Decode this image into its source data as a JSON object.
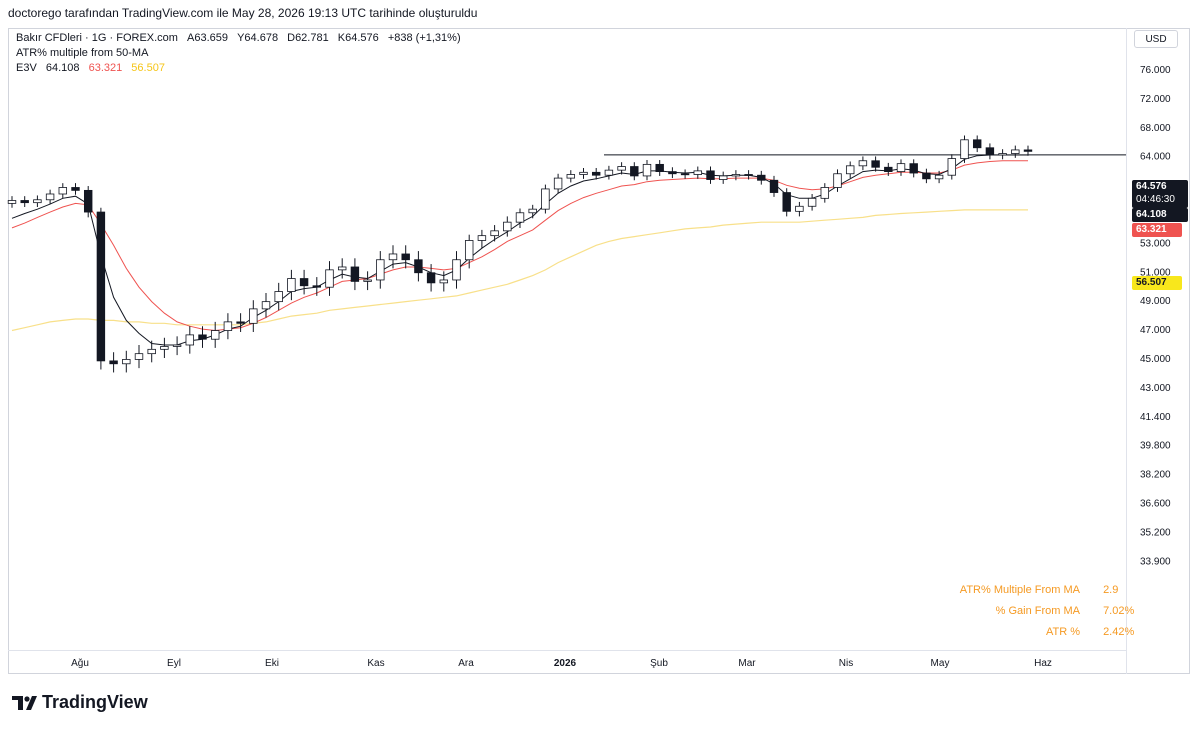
{
  "header": {
    "note": "doctorego tarafından TradingView.com ile May 28, 2026 19:13 UTC tarihinde oluşturuldu"
  },
  "legend": {
    "symbol_line": "Bakır CFDleri · 1G · FOREX.com",
    "ohlc": {
      "open": "A63.659",
      "high": "Y64.678",
      "low": "D62.781",
      "close": "K64.576",
      "change": "+838 (+1,31%)"
    },
    "indicator_name": "ATR% multiple from 50-MA",
    "ema_label": "E3V",
    "ema_values": {
      "black": "64.108",
      "red": "63.321",
      "yellow": "56.507"
    }
  },
  "currency_button": "USD",
  "badges": {
    "price": "64.576",
    "countdown": "04:46:30",
    "line_level": "64.108",
    "red_ma": "63.321",
    "yellow_ma": "56.507"
  },
  "stats": [
    {
      "label": "ATR% Multiple From MA",
      "value": "2.9"
    },
    {
      "label": "% Gain From MA",
      "value": "7.02%"
    },
    {
      "label": "ATR %",
      "value": "2.42%"
    }
  ],
  "brand": "TradingView",
  "colors": {
    "up_candle": "#ffffff",
    "down_candle": "#131722",
    "candle_outline": "#131722",
    "ema_fast": "#131722",
    "ema_mid": "#ef5350",
    "ma_slow": "#f8e08a",
    "stats_text": "#f59a23"
  },
  "chart_data": {
    "type": "candlestick",
    "y_ticks": [
      "76.000",
      "72.000",
      "68.000",
      "64.000",
      "60.000",
      "56.000",
      "53.000",
      "51.000",
      "49.000",
      "47.000",
      "45.000",
      "43.000",
      "41.400",
      "39.800",
      "38.200",
      "36.600",
      "35.200",
      "33.900"
    ],
    "x_ticks": [
      "Ağu",
      "Eyl",
      "Eki",
      "Kas",
      "Ara",
      "2026",
      "Şub",
      "Mar",
      "Nis",
      "May",
      "Haz"
    ],
    "horizontal_line": 64.108,
    "series_close": [
      57.8,
      57.5,
      57.9,
      58.7,
      59.6,
      59.2,
      56.2,
      44.8,
      44.6,
      44.9,
      45.3,
      45.6,
      45.8,
      45.9,
      46.6,
      46.3,
      46.9,
      47.5,
      47.4,
      48.4,
      48.9,
      49.6,
      50.5,
      50.0,
      49.9,
      51.1,
      51.3,
      50.3,
      50.4,
      51.8,
      52.2,
      51.8,
      50.9,
      50.2,
      50.4,
      51.8,
      53.2,
      53.7,
      54.2,
      55.1,
      56.1,
      56.6,
      59.4,
      60.9,
      61.4,
      61.7,
      61.3,
      62.0,
      62.5,
      61.2,
      62.8,
      61.8,
      61.5,
      61.4,
      61.9,
      60.7,
      61.2,
      61.4,
      61.3,
      60.6,
      58.9,
      56.3,
      57.0,
      58.1,
      59.6,
      61.5,
      62.6,
      63.3,
      62.4,
      61.8,
      62.9,
      61.6,
      60.8,
      61.3,
      63.6,
      66.2,
      65.1,
      64.1,
      64.3,
      64.8,
      64.6
    ],
    "series_ema_fast": [
      55.5,
      56.0,
      56.6,
      57.3,
      58.1,
      58.4,
      57.3,
      52.1,
      49.2,
      47.6,
      46.7,
      46.0,
      45.9,
      45.9,
      46.2,
      46.3,
      46.6,
      47.0,
      47.2,
      47.8,
      48.3,
      48.9,
      49.6,
      49.8,
      49.9,
      50.4,
      50.8,
      50.6,
      50.5,
      51.0,
      51.5,
      51.6,
      51.3,
      50.9,
      50.7,
      51.1,
      51.9,
      52.6,
      53.3,
      54.1,
      55.0,
      55.7,
      57.3,
      58.8,
      59.8,
      60.5,
      60.8,
      61.2,
      61.6,
      61.4,
      61.9,
      61.9,
      61.7,
      61.6,
      61.7,
      61.3,
      61.2,
      61.3,
      61.3,
      61.0,
      60.1,
      58.6,
      58.1,
      58.1,
      58.7,
      59.8,
      60.8,
      61.8,
      62.0,
      61.9,
      62.2,
      62.0,
      61.5,
      61.4,
      62.2,
      63.5,
      64.0,
      64.1,
      64.1,
      64.1,
      64.1
    ],
    "series_ema_mid": [
      54.5,
      55.0,
      55.6,
      56.2,
      56.9,
      57.4,
      57.2,
      54.9,
      52.8,
      51.2,
      49.9,
      48.9,
      48.1,
      47.5,
      47.2,
      47.0,
      46.9,
      47.0,
      47.1,
      47.4,
      47.8,
      48.3,
      48.8,
      49.2,
      49.5,
      49.9,
      50.3,
      50.4,
      50.5,
      50.8,
      51.1,
      51.3,
      51.3,
      51.2,
      51.1,
      51.2,
      51.6,
      52.0,
      52.5,
      53.1,
      53.7,
      54.3,
      55.3,
      56.4,
      57.4,
      58.2,
      58.8,
      59.3,
      59.8,
      60.0,
      60.4,
      60.6,
      60.7,
      60.8,
      60.9,
      60.8,
      60.8,
      60.9,
      60.9,
      60.9,
      60.6,
      59.9,
      59.5,
      59.3,
      59.4,
      59.8,
      60.4,
      61.0,
      61.3,
      61.5,
      61.7,
      61.7,
      61.6,
      61.6,
      62.0,
      62.7,
      63.0,
      63.2,
      63.3,
      63.3,
      63.3
    ],
    "series_ma_slow": [
      46.9,
      47.1,
      47.3,
      47.5,
      47.6,
      47.7,
      47.7,
      47.6,
      47.6,
      47.5,
      47.5,
      47.4,
      47.4,
      47.3,
      47.3,
      47.3,
      47.3,
      47.3,
      47.3,
      47.4,
      47.5,
      47.7,
      47.9,
      48.0,
      48.1,
      48.3,
      48.4,
      48.5,
      48.6,
      48.7,
      48.8,
      48.9,
      49.0,
      49.1,
      49.2,
      49.3,
      49.5,
      49.7,
      49.9,
      50.1,
      50.4,
      50.7,
      51.1,
      51.6,
      52.0,
      52.4,
      52.8,
      53.1,
      53.4,
      53.6,
      53.8,
      54.0,
      54.2,
      54.4,
      54.5,
      54.6,
      54.8,
      54.9,
      55.0,
      55.1,
      55.1,
      55.1,
      55.1,
      55.2,
      55.3,
      55.4,
      55.5,
      55.6,
      55.8,
      55.9,
      56.0,
      56.1,
      56.2,
      56.3,
      56.4,
      56.5,
      56.5,
      56.5,
      56.5,
      56.5,
      56.5
    ]
  }
}
